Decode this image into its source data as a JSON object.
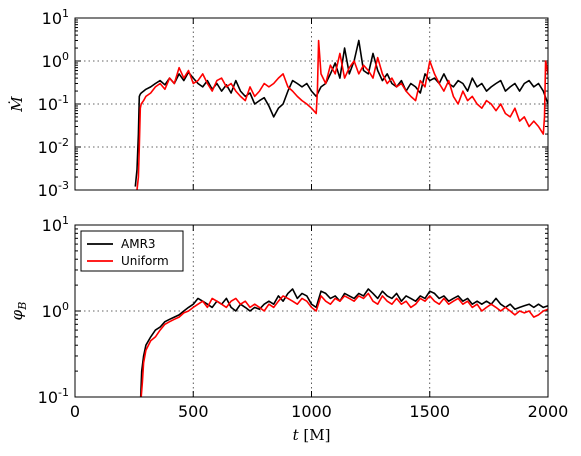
{
  "chart_data": [
    {
      "type": "line",
      "panel": "top",
      "ylabel": "Ṁ",
      "xlabel": "",
      "yscale": "log",
      "xlim": [
        0,
        2000
      ],
      "ylim": [
        0.001,
        10
      ],
      "xticks": [
        0,
        500,
        1000,
        1500,
        2000
      ],
      "yticks": [
        {
          "value": 0.001,
          "base": "10",
          "exp": "-3"
        },
        {
          "value": 0.01,
          "base": "10",
          "exp": "-2"
        },
        {
          "value": 0.1,
          "base": "10",
          "exp": "-1"
        },
        {
          "value": 1,
          "base": "10",
          "exp": "0"
        },
        {
          "value": 10,
          "base": "10",
          "exp": "1"
        }
      ],
      "grid": true,
      "series": [
        {
          "color": "#000000",
          "x": [
            255,
            262,
            268,
            272,
            276,
            280,
            290,
            300,
            320,
            340,
            360,
            380,
            400,
            420,
            440,
            460,
            480,
            500,
            520,
            540,
            560,
            580,
            600,
            620,
            640,
            660,
            680,
            700,
            720,
            740,
            760,
            780,
            800,
            820,
            840,
            860,
            880,
            900,
            920,
            940,
            960,
            980,
            1000,
            1020,
            1040,
            1060,
            1080,
            1100,
            1120,
            1140,
            1160,
            1180,
            1200,
            1220,
            1240,
            1260,
            1280,
            1300,
            1320,
            1340,
            1360,
            1380,
            1400,
            1420,
            1440,
            1460,
            1480,
            1500,
            1520,
            1540,
            1560,
            1580,
            1600,
            1620,
            1640,
            1660,
            1680,
            1700,
            1720,
            1740,
            1760,
            1780,
            1800,
            1820,
            1840,
            1860,
            1880,
            1900,
            1920,
            1940,
            1960,
            1980,
            2000
          ],
          "y": [
            0.0012,
            0.003,
            0.02,
            0.15,
            0.17,
            0.18,
            0.2,
            0.22,
            0.25,
            0.3,
            0.35,
            0.28,
            0.4,
            0.3,
            0.5,
            0.35,
            0.55,
            0.4,
            0.3,
            0.25,
            0.35,
            0.22,
            0.3,
            0.2,
            0.28,
            0.18,
            0.35,
            0.2,
            0.15,
            0.18,
            0.1,
            0.12,
            0.14,
            0.09,
            0.05,
            0.08,
            0.1,
            0.2,
            0.35,
            0.3,
            0.25,
            0.3,
            0.2,
            0.15,
            0.25,
            0.3,
            0.5,
            0.9,
            0.4,
            2.0,
            0.5,
            1.0,
            3.0,
            0.6,
            0.5,
            1.5,
            0.6,
            0.35,
            0.5,
            0.3,
            0.25,
            0.35,
            0.2,
            0.3,
            0.25,
            0.18,
            0.5,
            0.35,
            0.4,
            0.3,
            0.5,
            0.3,
            0.25,
            0.35,
            0.3,
            0.2,
            0.4,
            0.25,
            0.3,
            0.2,
            0.25,
            0.3,
            0.35,
            0.2,
            0.25,
            0.3,
            0.2,
            0.3,
            0.35,
            0.25,
            0.3,
            0.2,
            0.1
          ]
        },
        {
          "color": "#ff0000",
          "x": [
            262,
            268,
            272,
            276,
            280,
            290,
            300,
            320,
            340,
            360,
            380,
            400,
            420,
            440,
            460,
            480,
            500,
            520,
            540,
            560,
            580,
            600,
            620,
            640,
            660,
            680,
            700,
            720,
            740,
            760,
            780,
            800,
            820,
            840,
            860,
            880,
            900,
            920,
            940,
            960,
            980,
            1000,
            1020,
            1025,
            1030,
            1040,
            1060,
            1080,
            1100,
            1120,
            1140,
            1160,
            1180,
            1200,
            1220,
            1240,
            1260,
            1280,
            1300,
            1320,
            1340,
            1360,
            1380,
            1400,
            1420,
            1440,
            1460,
            1480,
            1500,
            1520,
            1540,
            1560,
            1580,
            1600,
            1620,
            1640,
            1660,
            1680,
            1700,
            1720,
            1740,
            1760,
            1780,
            1800,
            1820,
            1840,
            1860,
            1880,
            1900,
            1920,
            1940,
            1960,
            1980,
            1985,
            1990,
            2000
          ],
          "y": [
            0.001,
            0.002,
            0.01,
            0.08,
            0.1,
            0.12,
            0.15,
            0.18,
            0.25,
            0.3,
            0.22,
            0.4,
            0.3,
            0.7,
            0.4,
            0.6,
            0.3,
            0.35,
            0.5,
            0.3,
            0.2,
            0.35,
            0.4,
            0.25,
            0.3,
            0.2,
            0.15,
            0.12,
            0.25,
            0.15,
            0.2,
            0.3,
            0.25,
            0.3,
            0.4,
            0.5,
            0.25,
            0.2,
            0.15,
            0.12,
            0.1,
            0.08,
            0.06,
            0.2,
            3.0,
            0.5,
            0.3,
            0.8,
            0.5,
            1.5,
            0.4,
            0.7,
            1.0,
            0.5,
            0.8,
            0.6,
            0.4,
            1.2,
            0.5,
            0.3,
            0.4,
            0.25,
            0.3,
            0.2,
            0.15,
            0.12,
            0.35,
            0.25,
            1.0,
            0.5,
            0.3,
            0.2,
            0.35,
            0.15,
            0.1,
            0.2,
            0.12,
            0.15,
            0.1,
            0.08,
            0.12,
            0.1,
            0.07,
            0.1,
            0.06,
            0.05,
            0.08,
            0.04,
            0.05,
            0.03,
            0.04,
            0.03,
            0.02,
            0.05,
            1.0,
            0.5
          ]
        }
      ]
    },
    {
      "type": "line",
      "panel": "bottom",
      "ylabel": "φ_B",
      "xlabel": "t [M]",
      "yscale": "log",
      "xlim": [
        0,
        2000
      ],
      "ylim": [
        0.1,
        10
      ],
      "xticks": [
        0,
        500,
        1000,
        1500,
        2000
      ],
      "yticks": [
        {
          "value": 0.1,
          "base": "10",
          "exp": "-1"
        },
        {
          "value": 1,
          "base": "10",
          "exp": "0"
        },
        {
          "value": 10,
          "base": "10",
          "exp": "1"
        }
      ],
      "grid": true,
      "legend": "top-left",
      "series": [
        {
          "name": "AMR3",
          "color": "#000000",
          "x": [
            278,
            282,
            290,
            300,
            320,
            340,
            360,
            380,
            400,
            420,
            440,
            460,
            480,
            500,
            520,
            540,
            560,
            580,
            600,
            620,
            640,
            660,
            680,
            700,
            720,
            740,
            760,
            780,
            800,
            820,
            840,
            860,
            880,
            900,
            920,
            940,
            960,
            980,
            1000,
            1020,
            1040,
            1060,
            1080,
            1100,
            1120,
            1140,
            1160,
            1180,
            1200,
            1220,
            1240,
            1260,
            1280,
            1300,
            1320,
            1340,
            1360,
            1380,
            1400,
            1420,
            1440,
            1460,
            1480,
            1500,
            1520,
            1540,
            1560,
            1580,
            1600,
            1620,
            1640,
            1660,
            1680,
            1700,
            1720,
            1740,
            1760,
            1780,
            1800,
            1820,
            1840,
            1860,
            1880,
            1900,
            1920,
            1940,
            1960,
            1980,
            2000
          ],
          "y": [
            0.1,
            0.2,
            0.3,
            0.4,
            0.5,
            0.6,
            0.65,
            0.75,
            0.8,
            0.85,
            0.9,
            1.0,
            1.1,
            1.2,
            1.4,
            1.3,
            1.2,
            1.1,
            1.3,
            1.2,
            1.4,
            1.1,
            1.0,
            1.2,
            1.1,
            1.0,
            1.1,
            1.05,
            1.2,
            1.3,
            1.2,
            1.5,
            1.3,
            1.6,
            1.8,
            1.4,
            1.6,
            1.5,
            1.2,
            1.1,
            1.7,
            1.6,
            1.4,
            1.5,
            1.3,
            1.6,
            1.5,
            1.4,
            1.6,
            1.5,
            1.8,
            1.6,
            1.4,
            1.7,
            1.5,
            1.4,
            1.6,
            1.3,
            1.5,
            1.4,
            1.3,
            1.5,
            1.4,
            1.7,
            1.6,
            1.4,
            1.5,
            1.3,
            1.4,
            1.5,
            1.3,
            1.4,
            1.2,
            1.3,
            1.2,
            1.3,
            1.2,
            1.4,
            1.2,
            1.1,
            1.2,
            1.05,
            1.1,
            1.15,
            1.2,
            1.1,
            1.2,
            1.1,
            1.15
          ]
        },
        {
          "name": "Uniform",
          "color": "#ff0000",
          "x": [
            280,
            285,
            290,
            300,
            320,
            340,
            360,
            380,
            400,
            420,
            440,
            460,
            480,
            500,
            520,
            540,
            560,
            580,
            600,
            620,
            640,
            660,
            680,
            700,
            720,
            740,
            760,
            780,
            800,
            820,
            840,
            860,
            880,
            900,
            920,
            940,
            960,
            980,
            1000,
            1020,
            1040,
            1060,
            1080,
            1100,
            1120,
            1140,
            1160,
            1180,
            1200,
            1220,
            1240,
            1260,
            1280,
            1300,
            1320,
            1340,
            1360,
            1380,
            1400,
            1420,
            1440,
            1460,
            1480,
            1500,
            1520,
            1540,
            1560,
            1580,
            1600,
            1620,
            1640,
            1660,
            1680,
            1700,
            1720,
            1740,
            1760,
            1780,
            1800,
            1820,
            1840,
            1860,
            1880,
            1900,
            1920,
            1940,
            1960,
            1980,
            2000
          ],
          "y": [
            0.1,
            0.15,
            0.25,
            0.35,
            0.45,
            0.5,
            0.6,
            0.7,
            0.75,
            0.8,
            0.85,
            0.95,
            1.0,
            1.1,
            1.2,
            1.3,
            1.1,
            1.4,
            1.3,
            1.2,
            1.1,
            1.3,
            1.4,
            1.2,
            1.3,
            1.1,
            1.2,
            1.1,
            1.0,
            1.2,
            1.1,
            1.3,
            1.5,
            1.4,
            1.3,
            1.2,
            1.4,
            1.3,
            1.1,
            1.0,
            1.5,
            1.3,
            1.2,
            1.4,
            1.3,
            1.5,
            1.4,
            1.3,
            1.5,
            1.4,
            1.6,
            1.3,
            1.2,
            1.5,
            1.3,
            1.2,
            1.4,
            1.2,
            1.3,
            1.1,
            1.2,
            1.4,
            1.3,
            1.5,
            1.3,
            1.2,
            1.4,
            1.2,
            1.3,
            1.4,
            1.2,
            1.3,
            1.1,
            1.2,
            1.0,
            1.1,
            1.2,
            1.1,
            1.0,
            1.1,
            1.0,
            0.9,
            1.0,
            0.95,
            1.0,
            0.85,
            0.9,
            1.0,
            1.05
          ]
        }
      ]
    }
  ]
}
